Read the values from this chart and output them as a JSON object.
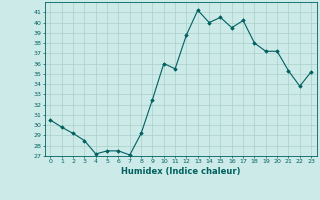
{
  "x": [
    0,
    1,
    2,
    3,
    4,
    5,
    6,
    7,
    8,
    9,
    10,
    11,
    12,
    13,
    14,
    15,
    16,
    17,
    18,
    19,
    20,
    21,
    22,
    23
  ],
  "y": [
    30.5,
    29.8,
    29.2,
    28.5,
    27.2,
    27.5,
    27.5,
    27.1,
    29.2,
    32.5,
    36.0,
    35.5,
    38.8,
    41.2,
    40.0,
    40.5,
    39.5,
    40.2,
    38.0,
    37.2,
    37.2,
    35.3,
    33.8,
    35.2
  ],
  "xlabel": "Humidex (Indice chaleur)",
  "line_color": "#006060",
  "marker": "D",
  "marker_size": 1.8,
  "linewidth": 0.8,
  "bg_color": "#cceae8",
  "grid_color": "#aacfcc",
  "ylim": [
    27,
    42
  ],
  "xlim": [
    -0.5,
    23.5
  ],
  "yticks": [
    27,
    28,
    29,
    30,
    31,
    32,
    33,
    34,
    35,
    36,
    37,
    38,
    39,
    40,
    41
  ],
  "xticks": [
    0,
    1,
    2,
    3,
    4,
    5,
    6,
    7,
    8,
    9,
    10,
    11,
    12,
    13,
    14,
    15,
    16,
    17,
    18,
    19,
    20,
    21,
    22,
    23
  ],
  "tick_fontsize": 4.5,
  "xlabel_fontsize": 6.0
}
